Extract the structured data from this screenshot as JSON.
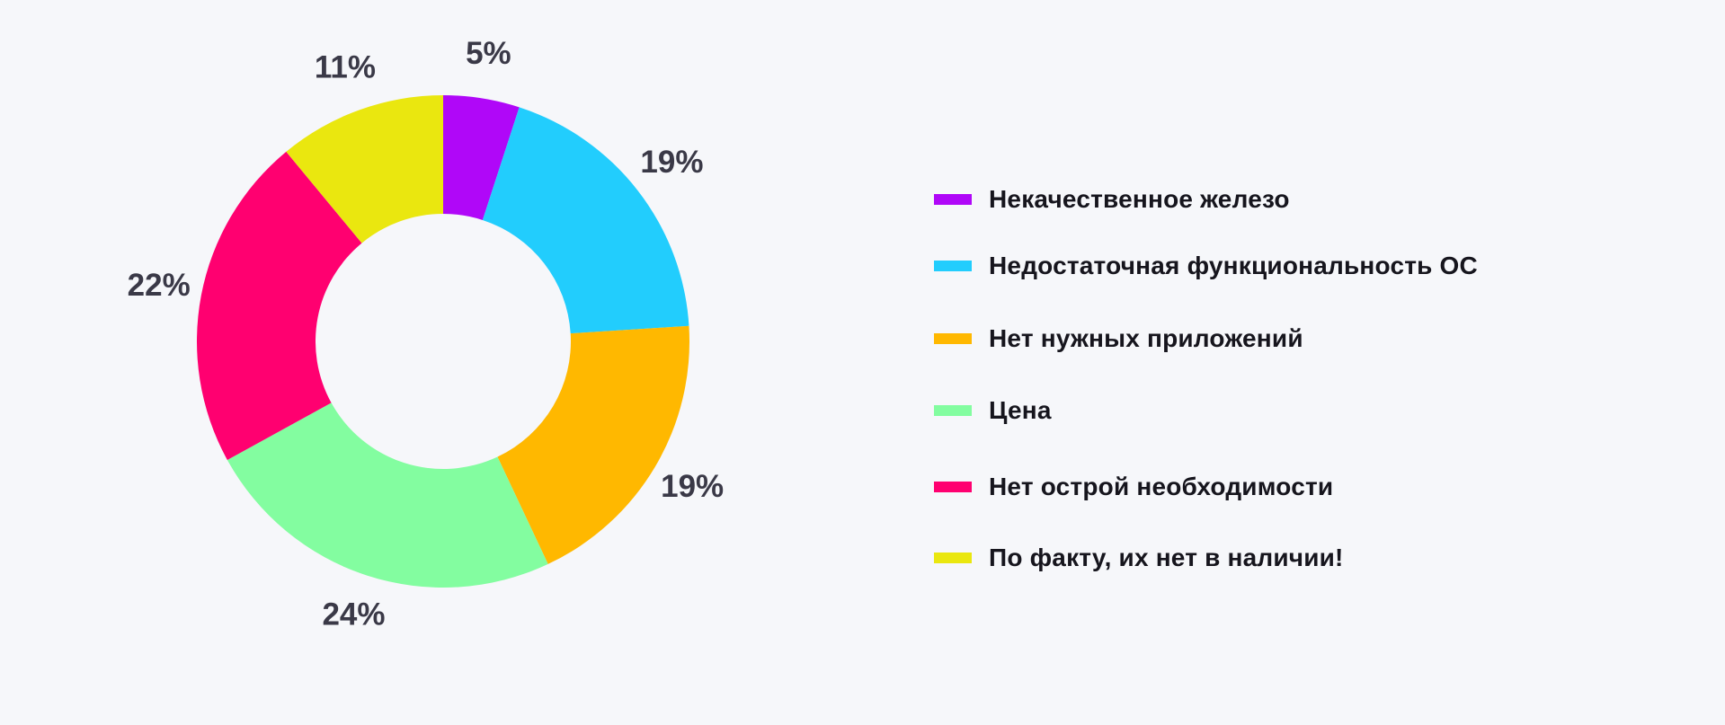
{
  "chart_data": {
    "type": "pie",
    "donut": true,
    "categories": [
      "Некачественное железо",
      "Недостаточная функциональность ОС",
      "Нет нужных приложений",
      "Цена",
      "Нет острой необходимости",
      "По факту, их нет в наличии!"
    ],
    "values": [
      5,
      19,
      19,
      24,
      22,
      11
    ],
    "labels": [
      "5%",
      "19%",
      "19%",
      "24%",
      "22%",
      "11%"
    ],
    "colors": [
      "#b007f8",
      "#22cdfd",
      "#ffb800",
      "#83fda0",
      "#ff0070",
      "#eae70f"
    ],
    "legend_position": "right",
    "title": ""
  }
}
